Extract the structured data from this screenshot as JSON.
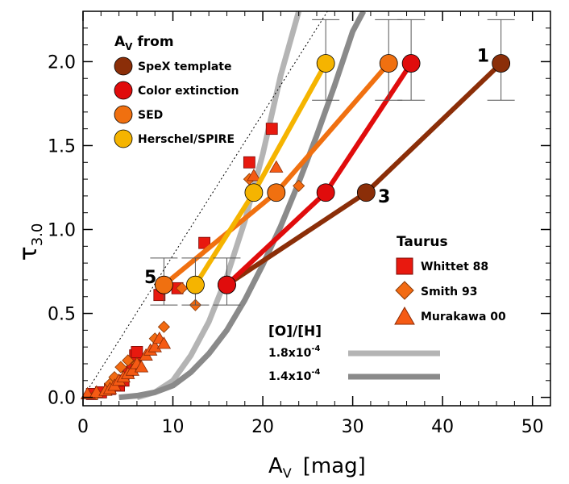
{
  "chart_data": {
    "type": "scatter",
    "xlabel": "A",
    "xlabel_sub": "V",
    "xlabel_unit": "[mag]",
    "ylabel": "τ",
    "ylabel_sub": "3.0",
    "xlim": [
      0,
      52
    ],
    "ylim": [
      -0.05,
      2.3
    ],
    "xticks": [
      0,
      10,
      20,
      30,
      40,
      50
    ],
    "yticks": [
      0.0,
      0.5,
      1.0,
      1.5,
      2.0
    ],
    "xtick_labels": [
      "0",
      "10",
      "20",
      "30",
      "40",
      "50"
    ],
    "ytick_labels": [
      "0.0",
      "0.5",
      "1.0",
      "1.5",
      "2.0"
    ],
    "legend_av": {
      "title": "A",
      "title_sub": "V",
      "title_suffix": " from",
      "entries": [
        {
          "label": "SpeX template",
          "color": "#8b2e08"
        },
        {
          "label": "Color extinction",
          "color": "#e00c0c"
        },
        {
          "label": "SED",
          "color": "#f07010"
        },
        {
          "label": "Herschel/SPIRE",
          "color": "#f5b400"
        }
      ]
    },
    "legend_taurus": {
      "title": "Taurus",
      "entries": [
        {
          "label": "Whittet 88",
          "marker": "square",
          "color": "#e8190f"
        },
        {
          "label": "Smith 93",
          "marker": "diamond",
          "color": "#f26a12"
        },
        {
          "label": "Murakawa 00",
          "marker": "triangle",
          "color": "#f55a14"
        }
      ]
    },
    "legend_oh": {
      "title": "[O]/[H]",
      "entries": [
        {
          "label_base": "1.8x10",
          "label_exp": "-4",
          "color": "#b4b4b4"
        },
        {
          "label_base": "1.4x10",
          "label_exp": "-4",
          "color": "#8a8a8a"
        }
      ]
    },
    "annotations": [
      {
        "text": "1",
        "x": 44.5,
        "y": 2.0
      },
      {
        "text": "3",
        "x": 33.5,
        "y": 1.16
      },
      {
        "text": "5",
        "x": 7.5,
        "y": 0.68
      }
    ],
    "series": [
      {
        "name": "SpeX template",
        "color": "#8b2e08",
        "points": [
          [
            16.0,
            0.67
          ],
          [
            31.5,
            1.22
          ],
          [
            46.5,
            1.99
          ]
        ]
      },
      {
        "name": "Color extinction",
        "color": "#e00c0c",
        "points": [
          [
            16.0,
            0.67
          ],
          [
            27.0,
            1.22
          ],
          [
            36.5,
            1.99
          ]
        ]
      },
      {
        "name": "SED",
        "color": "#f07010",
        "points": [
          [
            9.0,
            0.67
          ],
          [
            21.5,
            1.22
          ],
          [
            34.0,
            1.99
          ]
        ]
      },
      {
        "name": "Herschel/SPIRE",
        "color": "#f5b400",
        "points": [
          [
            12.5,
            0.67
          ],
          [
            19.0,
            1.22
          ],
          [
            27.0,
            1.99
          ]
        ]
      }
    ],
    "error_bars": [
      {
        "x": 9.0,
        "y": 0.67,
        "lo": 0.55,
        "hi": 0.83
      },
      {
        "x": 12.5,
        "y": 0.67,
        "lo": 0.55,
        "hi": 0.83
      },
      {
        "x": 16.0,
        "y": 0.67,
        "lo": 0.55,
        "hi": 0.83
      },
      {
        "x": 27.0,
        "y": 1.99,
        "lo": 1.77,
        "hi": 2.25
      },
      {
        "x": 34.0,
        "y": 1.99,
        "lo": 1.77,
        "hi": 2.25
      },
      {
        "x": 36.5,
        "y": 1.99,
        "lo": 1.77,
        "hi": 2.25
      },
      {
        "x": 46.5,
        "y": 1.99,
        "lo": 1.77,
        "hi": 2.25
      }
    ],
    "models": [
      {
        "name": "1.8x10-4",
        "color": "#b4b4b4",
        "points": [
          [
            6,
            0
          ],
          [
            8,
            0.03
          ],
          [
            10,
            0.1
          ],
          [
            12,
            0.25
          ],
          [
            14,
            0.45
          ],
          [
            16,
            0.72
          ],
          [
            18,
            1.05
          ],
          [
            20,
            1.45
          ],
          [
            22,
            1.92
          ],
          [
            24,
            2.3
          ]
        ]
      },
      {
        "name": "1.4x10-4",
        "color": "#8a8a8a",
        "points": [
          [
            4,
            0
          ],
          [
            6,
            0.01
          ],
          [
            8,
            0.03
          ],
          [
            10,
            0.07
          ],
          [
            12,
            0.15
          ],
          [
            14,
            0.26
          ],
          [
            16,
            0.4
          ],
          [
            18,
            0.58
          ],
          [
            20,
            0.79
          ],
          [
            22,
            1.02
          ],
          [
            24,
            1.28
          ],
          [
            26,
            1.56
          ],
          [
            28,
            1.86
          ],
          [
            30,
            2.18
          ],
          [
            31.2,
            2.3
          ]
        ]
      }
    ],
    "dotted_line": [
      [
        0,
        0
      ],
      [
        27.2,
        2.3
      ]
    ],
    "taurus_whittet": [
      [
        1,
        0.02
      ],
      [
        2,
        0.03
      ],
      [
        3,
        0.05
      ],
      [
        4,
        0.07
      ],
      [
        4.5,
        0.1
      ],
      [
        5,
        0.15
      ],
      [
        5.5,
        0.2
      ],
      [
        5.8,
        0.25
      ],
      [
        6,
        0.27
      ],
      [
        8.5,
        0.61
      ],
      [
        10.5,
        0.65
      ],
      [
        13.5,
        0.92
      ],
      [
        18.5,
        1.4
      ],
      [
        21,
        1.6
      ]
    ],
    "taurus_smith": [
      [
        1.5,
        0.02
      ],
      [
        3,
        0.08
      ],
      [
        3.5,
        0.12
      ],
      [
        4.2,
        0.18
      ],
      [
        5,
        0.22
      ],
      [
        6,
        0.2
      ],
      [
        8,
        0.35
      ],
      [
        9,
        0.42
      ],
      [
        11,
        0.65
      ],
      [
        12.5,
        0.55
      ],
      [
        18.5,
        1.3
      ],
      [
        24,
        1.26
      ]
    ],
    "taurus_murakawa": [
      [
        0.5,
        0.02
      ],
      [
        1.5,
        0.03
      ],
      [
        2.5,
        0.04
      ],
      [
        3,
        0.05
      ],
      [
        3.5,
        0.07
      ],
      [
        4,
        0.1
      ],
      [
        4.5,
        0.12
      ],
      [
        5,
        0.14
      ],
      [
        5.5,
        0.16
      ],
      [
        6,
        0.2
      ],
      [
        6.5,
        0.18
      ],
      [
        7,
        0.25
      ],
      [
        7.5,
        0.28
      ],
      [
        8,
        0.3
      ],
      [
        8.5,
        0.35
      ],
      [
        9,
        0.32
      ],
      [
        19,
        1.32
      ],
      [
        21.5,
        1.37
      ]
    ]
  }
}
